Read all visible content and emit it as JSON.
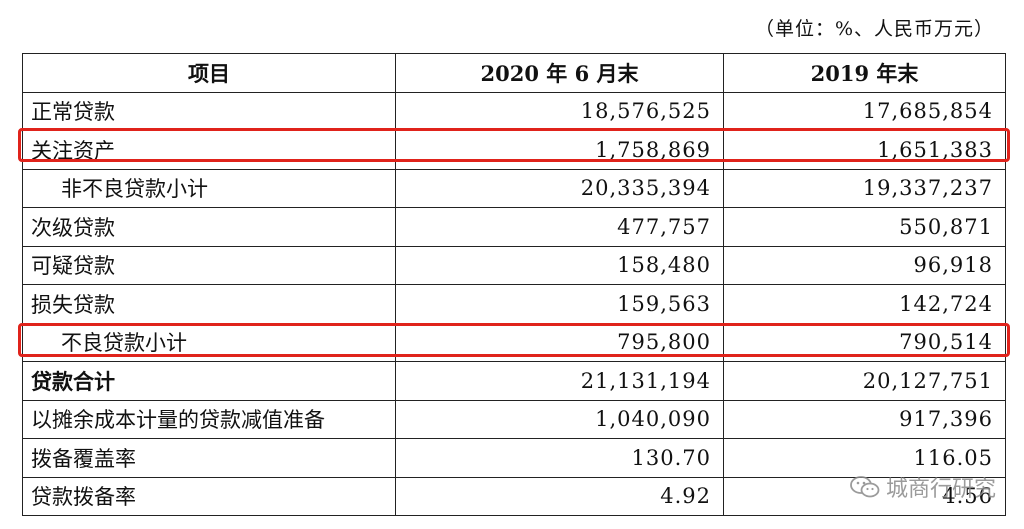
{
  "unit_note": "（单位：%、人民币万元）",
  "table": {
    "headers": [
      "项目",
      "2020 年 6 月末",
      "2019 年末"
    ],
    "rows": [
      {
        "label": "正常贷款",
        "v2020": "18,576,525",
        "v2019": "17,685,854"
      },
      {
        "label": "关注资产",
        "v2020": "1,758,869",
        "v2019": "1,651,383"
      },
      {
        "label": "非不良贷款小计",
        "v2020": "20,335,394",
        "v2019": "19,337,237"
      },
      {
        "label": "次级贷款",
        "v2020": "477,757",
        "v2019": "550,871"
      },
      {
        "label": "可疑贷款",
        "v2020": "158,480",
        "v2019": "96,918"
      },
      {
        "label": "损失贷款",
        "v2020": "159,563",
        "v2019": "142,724"
      },
      {
        "label": "不良贷款小计",
        "v2020": "795,800",
        "v2019": "790,514"
      },
      {
        "label": "贷款合计",
        "v2020": "21,131,194",
        "v2019": "20,127,751"
      },
      {
        "label": "以摊余成本计量的贷款减值准备",
        "v2020": "1,040,090",
        "v2019": "917,396"
      },
      {
        "label": "拨备覆盖率",
        "v2020": "130.70",
        "v2019": "116.05"
      },
      {
        "label": "贷款拨备率",
        "v2020": "4.92",
        "v2019": "4.56"
      }
    ]
  },
  "watermark": {
    "text": "城商行研究",
    "icon": "wechat-icon"
  },
  "colors": {
    "highlight": "#e0231b"
  }
}
